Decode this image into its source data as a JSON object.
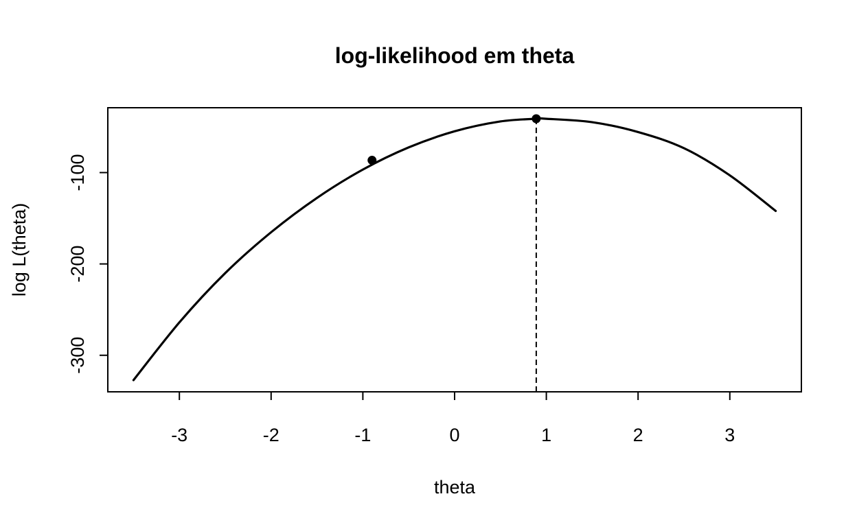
{
  "chart_data": {
    "type": "line",
    "title": "log-likelihood em theta",
    "xlabel": "theta",
    "ylabel": "log L(theta)",
    "xlim": [
      -3.78,
      3.78
    ],
    "ylim": [
      -340,
      -29
    ],
    "x_ticks": [
      -3,
      -2,
      -1,
      0,
      1,
      2,
      3
    ],
    "x_tick_labels": [
      "-3",
      "-2",
      "-1",
      "0",
      "1",
      "2",
      "3"
    ],
    "y_ticks": [
      -300,
      -200,
      -100
    ],
    "y_tick_labels": [
      "-300",
      "-200",
      "-100"
    ],
    "grid": false,
    "legend": "none",
    "line_color": "#000000",
    "curve": {
      "x": [
        -3.5,
        -3.0,
        -2.5,
        -2.0,
        -1.5,
        -1.0,
        -0.5,
        0.0,
        0.5,
        0.89,
        1.0,
        1.5,
        2.0,
        2.5,
        3.0,
        3.5
      ],
      "y": [
        -327.2,
        -264.0,
        -210.0,
        -165.3,
        -127.7,
        -96.7,
        -72.4,
        -54.8,
        -44.0,
        -41.1,
        -41.1,
        -44.8,
        -55.6,
        -73.3,
        -103.0,
        -142.0
      ]
    },
    "points": [
      {
        "x": -0.9,
        "y": -86.5
      },
      {
        "x": 0.89,
        "y": -41.0
      }
    ],
    "reference_line": {
      "x": 0.89,
      "style": "dashed"
    }
  }
}
